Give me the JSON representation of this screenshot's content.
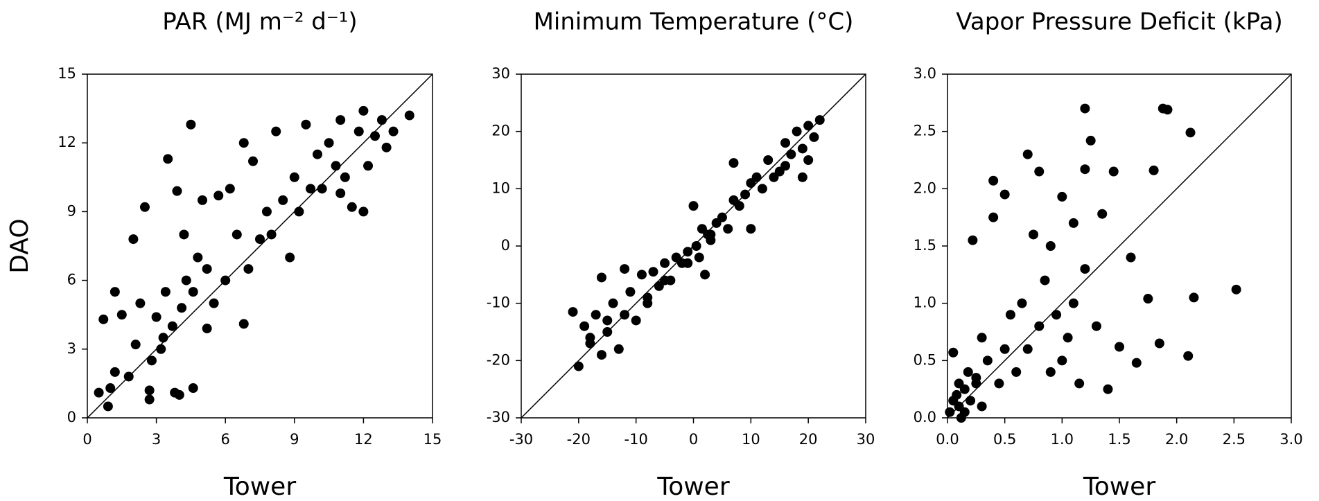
{
  "chart_data": [
    {
      "type": "scatter",
      "title": "PAR (MJ m⁻² d⁻¹)",
      "xlabel": "Tower",
      "ylabel": "DAO",
      "color": "#000000",
      "identity_line": true,
      "xlim": [
        0,
        15
      ],
      "ylim": [
        0,
        15
      ],
      "xticks": [
        0,
        3,
        6,
        9,
        12,
        15
      ],
      "yticks": [
        0,
        3,
        6,
        9,
        12,
        15
      ],
      "x": [
        0.5,
        0.7,
        0.9,
        1.0,
        1.2,
        1.5,
        1.8,
        2.0,
        2.1,
        2.3,
        2.5,
        2.7,
        2.8,
        3.0,
        3.2,
        3.4,
        3.5,
        3.7,
        3.9,
        4.0,
        4.1,
        4.3,
        4.5,
        4.6,
        4.8,
        5.0,
        5.2,
        5.5,
        5.7,
        6.0,
        6.2,
        6.5,
        6.8,
        7.0,
        7.2,
        7.5,
        7.8,
        8.0,
        8.2,
        8.5,
        8.8,
        9.0,
        9.2,
        9.5,
        9.7,
        10.0,
        10.2,
        10.5,
        10.8,
        11.0,
        11.2,
        11.5,
        11.8,
        12.0,
        12.2,
        12.5,
        12.8,
        13.0,
        13.3,
        14.0,
        2.7,
        3.8,
        4.6,
        6.8,
        11.0,
        12.0,
        1.2,
        3.3,
        4.2,
        5.2
      ],
      "values": [
        1.1,
        4.3,
        0.5,
        1.3,
        2.0,
        4.5,
        1.8,
        7.8,
        3.2,
        5.0,
        9.2,
        1.2,
        2.5,
        4.4,
        3.0,
        5.5,
        11.3,
        4.0,
        9.9,
        1.0,
        4.8,
        6.0,
        12.8,
        5.5,
        7.0,
        9.5,
        6.5,
        5.0,
        9.7,
        6.0,
        10.0,
        8.0,
        12.0,
        6.5,
        11.2,
        7.8,
        9.0,
        8.0,
        12.5,
        9.5,
        7.0,
        10.5,
        9.0,
        12.8,
        10.0,
        11.5,
        10.0,
        12.0,
        11.0,
        13.0,
        10.5,
        9.2,
        12.5,
        13.4,
        11.0,
        12.3,
        13.0,
        11.8,
        12.5,
        13.2,
        0.8,
        1.1,
        1.3,
        4.1,
        9.8,
        9.0,
        5.5,
        3.5,
        8.0,
        3.9
      ]
    },
    {
      "type": "scatter",
      "title": "Minimum Temperature (°C)",
      "xlabel": "Tower",
      "color": "#000000",
      "identity_line": true,
      "xlim": [
        -30,
        30
      ],
      "ylim": [
        -30,
        30
      ],
      "xticks": [
        -30,
        -20,
        -10,
        0,
        10,
        20,
        30
      ],
      "yticks": [
        -30,
        -20,
        -10,
        0,
        10,
        20,
        30
      ],
      "x": [
        -21,
        -20,
        -19,
        -18,
        -17,
        -16,
        -16,
        -15,
        -14,
        -13,
        -12,
        -11,
        -10,
        -9,
        -8,
        -7,
        -6,
        -5,
        -4,
        -3,
        -2,
        -1,
        0,
        0.5,
        1,
        1.5,
        2,
        2.5,
        3,
        4,
        5,
        6,
        7,
        8,
        9,
        10,
        11,
        12,
        13,
        14,
        15,
        16,
        17,
        18,
        19,
        20,
        21,
        22,
        20,
        19,
        -18,
        -15,
        -12,
        -8,
        -5,
        -1,
        3,
        7,
        10,
        16
      ],
      "values": [
        -11.5,
        -21,
        -14,
        -17,
        -12,
        -5.5,
        -19,
        -15,
        -10,
        -18,
        -4,
        -8,
        -13,
        -5,
        -10,
        -4.5,
        -7,
        -3,
        -6,
        -2,
        -3,
        -1,
        7,
        0,
        -2,
        3,
        -5,
        2,
        1,
        4,
        5,
        3,
        14.5,
        7,
        9,
        3,
        12,
        10,
        15,
        12,
        13,
        18,
        16,
        20,
        17,
        21,
        19,
        22,
        15,
        12,
        -16,
        -13,
        -12,
        -9,
        -6,
        -3,
        2,
        8,
        11,
        14
      ]
    },
    {
      "type": "scatter",
      "title": "Vapor Pressure Deficit (kPa)",
      "xlabel": "Tower",
      "color": "#000000",
      "identity_line": true,
      "xlim": [
        0,
        3
      ],
      "ylim": [
        0,
        3
      ],
      "xticks": [
        {
          "value": 0,
          "label": "0.0"
        },
        0.5,
        {
          "value": 1,
          "label": "1.0"
        },
        1.5,
        {
          "value": 2,
          "label": "2.0"
        },
        2.5,
        {
          "value": 3,
          "label": "3.0"
        }
      ],
      "yticks": [
        {
          "value": 0,
          "label": "0.0"
        },
        0.5,
        {
          "value": 1,
          "label": "1.0"
        },
        1.5,
        {
          "value": 2,
          "label": "2.0"
        },
        2.5,
        {
          "value": 3,
          "label": "3.0"
        }
      ],
      "x": [
        0.02,
        0.05,
        0.05,
        0.08,
        0.1,
        0.1,
        0.12,
        0.15,
        0.18,
        0.2,
        0.22,
        0.25,
        0.3,
        0.3,
        0.35,
        0.4,
        0.4,
        0.45,
        0.5,
        0.5,
        0.55,
        0.6,
        0.65,
        0.7,
        0.7,
        0.75,
        0.8,
        0.8,
        0.85,
        0.9,
        0.95,
        1.0,
        1.0,
        1.05,
        1.1,
        1.1,
        1.15,
        1.2,
        1.2,
        1.25,
        1.3,
        1.35,
        1.4,
        1.45,
        1.5,
        1.6,
        1.65,
        1.75,
        1.8,
        1.85,
        1.88,
        1.92,
        2.1,
        2.12,
        2.15,
        2.52,
        0.15,
        0.25,
        1.2,
        0.9
      ],
      "values": [
        0.05,
        0.57,
        0.15,
        0.2,
        0.1,
        0.3,
        0.0,
        0.25,
        0.4,
        0.15,
        1.55,
        0.3,
        0.1,
        0.7,
        0.5,
        2.07,
        1.75,
        0.3,
        1.95,
        0.6,
        0.9,
        0.4,
        1.0,
        2.3,
        0.6,
        1.6,
        2.15,
        0.8,
        1.2,
        0.4,
        0.9,
        1.93,
        0.5,
        0.7,
        1.7,
        1.0,
        0.3,
        2.7,
        2.17,
        2.42,
        0.8,
        1.78,
        0.25,
        2.15,
        0.62,
        1.4,
        0.48,
        1.04,
        2.16,
        0.65,
        2.7,
        2.69,
        0.54,
        2.49,
        1.05,
        1.12,
        0.05,
        0.35,
        1.3,
        1.5
      ]
    }
  ]
}
